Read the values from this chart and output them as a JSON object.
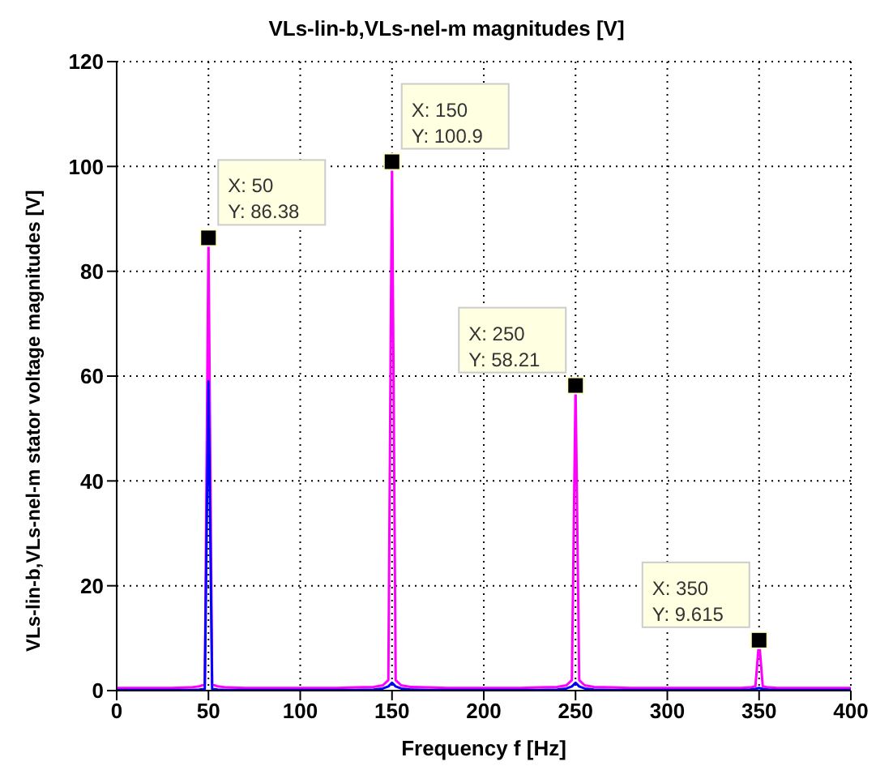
{
  "chart_data": {
    "type": "line",
    "title": "VLs-lin-b,VLs-nel-m magnitudes [V]",
    "xlabel": "Frequency f [Hz]",
    "ylabel": "VLs-lin-b,VLs-nel-m stator voltage magnitudes [V]",
    "x": [
      0,
      10,
      20,
      30,
      40,
      45,
      48,
      50,
      52,
      55,
      60,
      70,
      80,
      90,
      100,
      110,
      120,
      130,
      140,
      145,
      148,
      150,
      152,
      155,
      160,
      170,
      180,
      190,
      200,
      210,
      220,
      230,
      240,
      245,
      248,
      250,
      252,
      255,
      260,
      270,
      280,
      290,
      300,
      310,
      320,
      330,
      340,
      345,
      348,
      350,
      352,
      355,
      360,
      370,
      380,
      390,
      400
    ],
    "series": [
      {
        "color": "#ff00ff",
        "values": [
          0.5,
          0.5,
          0.5,
          0.5,
          0.6,
          0.8,
          1.2,
          86.38,
          1.2,
          0.8,
          0.6,
          0.5,
          0.5,
          0.5,
          0.5,
          0.5,
          0.5,
          0.6,
          0.7,
          1,
          2,
          100.9,
          2,
          1,
          0.7,
          0.6,
          0.5,
          0.5,
          0.5,
          0.5,
          0.5,
          0.6,
          0.7,
          1,
          2,
          58.21,
          2,
          1,
          0.7,
          0.6,
          0.5,
          0.5,
          0.5,
          0.5,
          0.5,
          0.5,
          0.5,
          0.6,
          0.8,
          9.615,
          0.8,
          0.6,
          0.5,
          0.5,
          0.5,
          0.5,
          0.5
        ]
      },
      {
        "color": "#0000ff",
        "values": [
          0.1,
          0.1,
          0.1,
          0.1,
          0.1,
          0.2,
          0.3,
          59,
          0.3,
          0.2,
          0.1,
          0.1,
          0.1,
          0.1,
          0.1,
          0.1,
          0.1,
          0.1,
          0.2,
          0.4,
          0.8,
          1.5,
          0.8,
          0.4,
          0.2,
          0.1,
          0.1,
          0.1,
          0.1,
          0.1,
          0.1,
          0.1,
          0.2,
          0.4,
          0.8,
          1.5,
          0.8,
          0.4,
          0.2,
          0.1,
          0.1,
          0.1,
          0.1,
          0.1,
          0.1,
          0.1,
          0.1,
          0.2,
          0.3,
          0.5,
          0.3,
          0.2,
          0.1,
          0.1,
          0.1,
          0.1,
          0.1
        ]
      }
    ],
    "xlim": [
      0,
      400
    ],
    "xticks": [
      0,
      50,
      100,
      150,
      200,
      250,
      300,
      350,
      400
    ],
    "ylim": [
      0,
      120
    ],
    "yticks": [
      0,
      20,
      40,
      60,
      80,
      100,
      120
    ],
    "grid": true,
    "legend": false,
    "marker": "none",
    "line_style": "solid",
    "annotations": [
      {
        "text": "X: 50\nY: 86.38",
        "x": 50,
        "y": 86.38
      },
      {
        "text": "X: 150\nY: 100.9",
        "x": 150,
        "y": 100.9
      },
      {
        "text": "X: 250\nY: 58.21",
        "x": 250,
        "y": 58.21
      },
      {
        "text": "X: 350\nY: 9.615",
        "x": 350,
        "y": 9.615
      }
    ]
  }
}
